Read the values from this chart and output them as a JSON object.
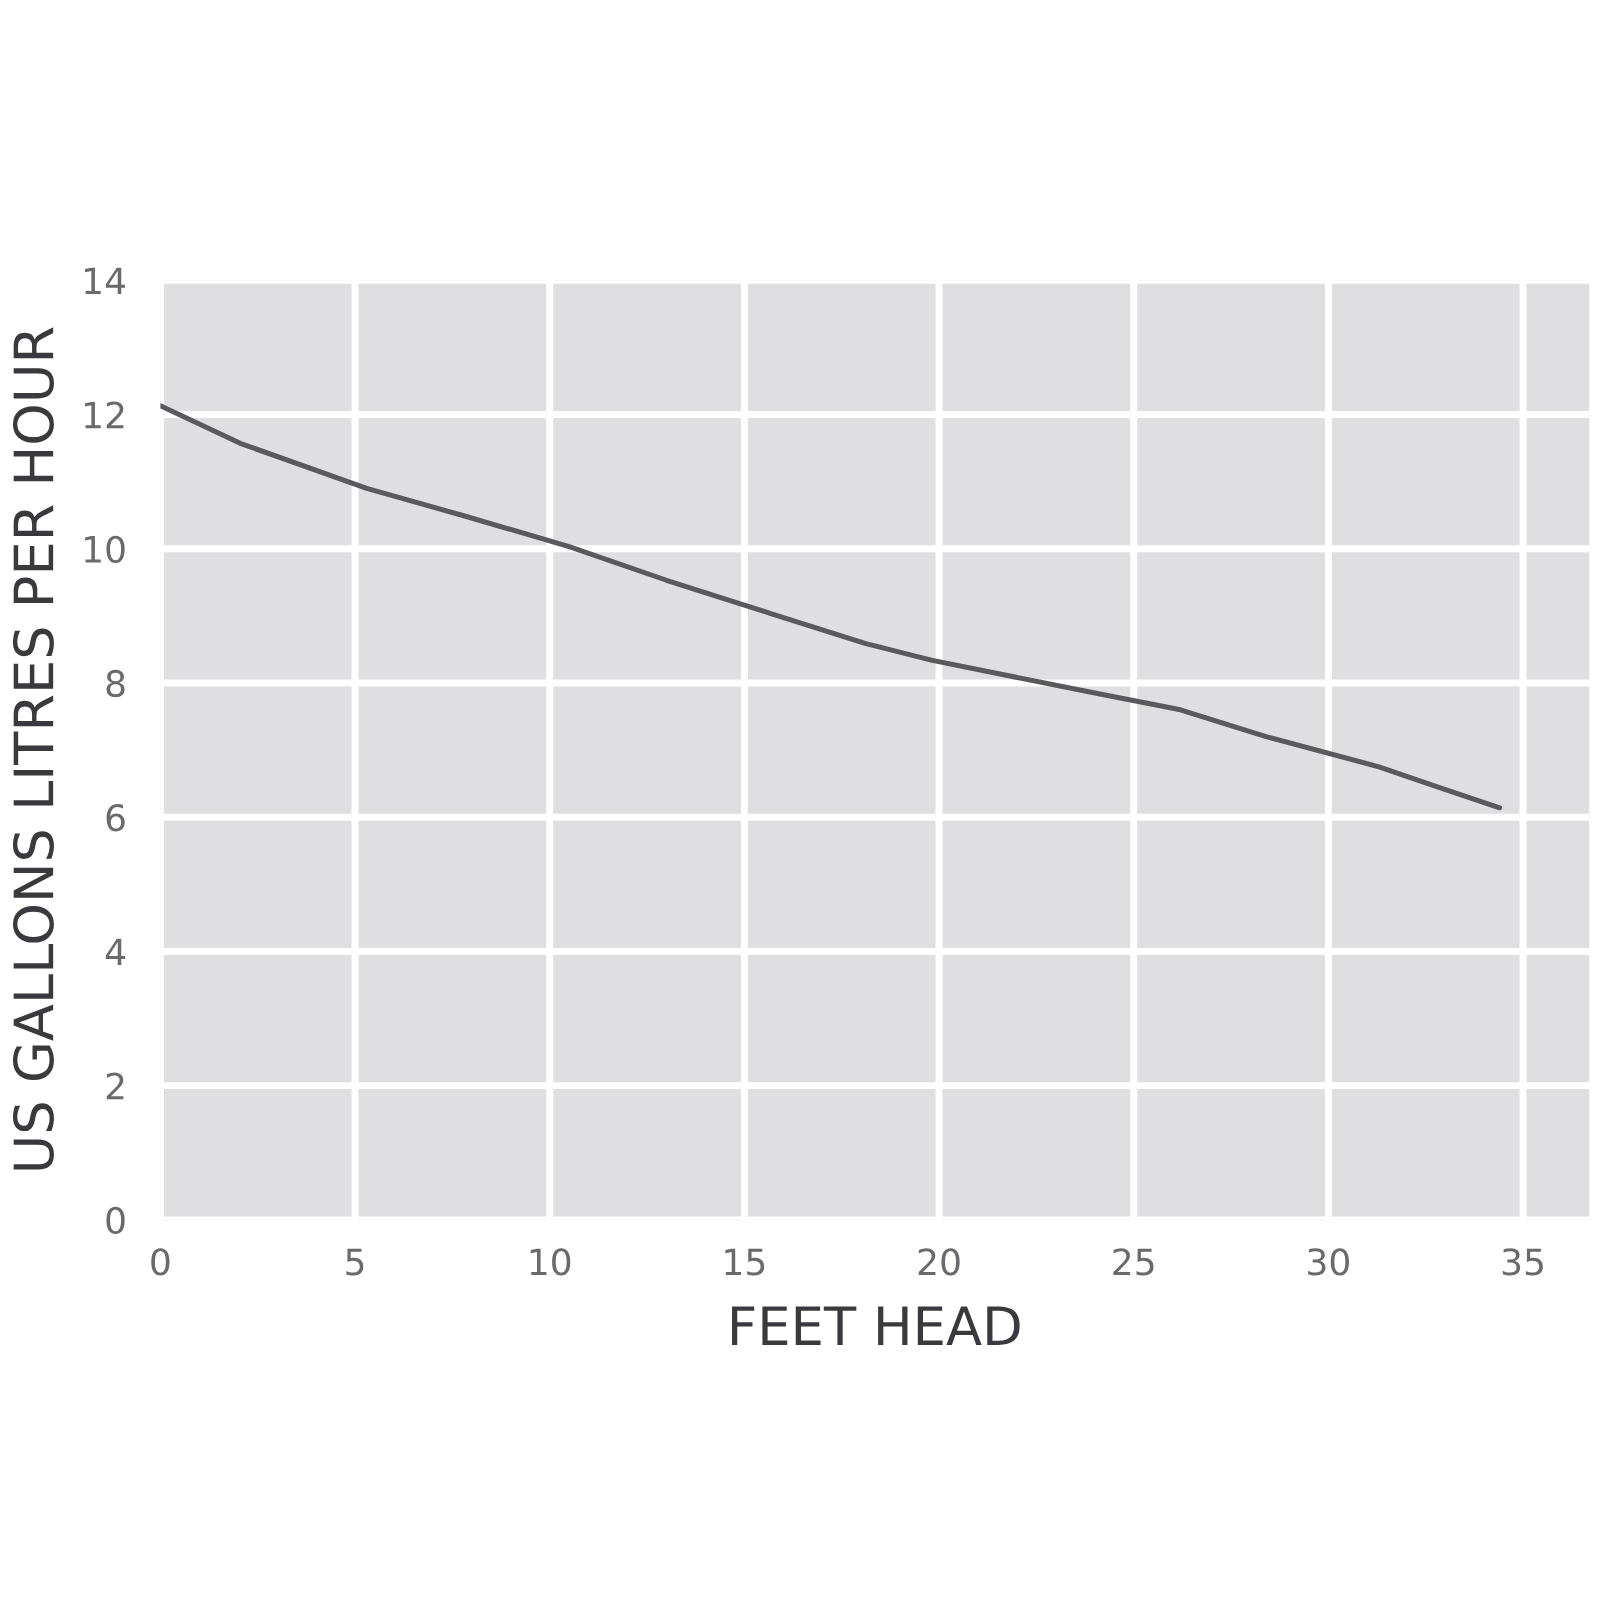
{
  "chart_data": {
    "type": "line",
    "xlabel": "FEET HEAD",
    "ylabel": "US GALLONS LITRES PER HOUR",
    "x": [
      0,
      2.05,
      5.3,
      7.86,
      10.5,
      13.0,
      15.7,
      18.1,
      19.8,
      21.5,
      24.1,
      26.2,
      28.4,
      31.3,
      32.8,
      34.4
    ],
    "series": [
      {
        "color": "#5a5a5e",
        "values": [
          12.13,
          11.57,
          10.9,
          10.48,
          10.03,
          9.53,
          9.03,
          8.59,
          8.34,
          8.14,
          7.84,
          7.6,
          7.2,
          6.75,
          6.45,
          6.14
        ]
      }
    ],
    "xlim": [
      0,
      36.7
    ],
    "xticks": [
      0,
      5,
      10,
      15,
      20,
      25,
      30,
      35
    ],
    "ylim": [
      0,
      14
    ],
    "yticks": [
      0,
      2,
      4,
      6,
      8,
      10,
      12,
      14
    ],
    "grid": true,
    "marker": "none",
    "line_style": "solid"
  }
}
